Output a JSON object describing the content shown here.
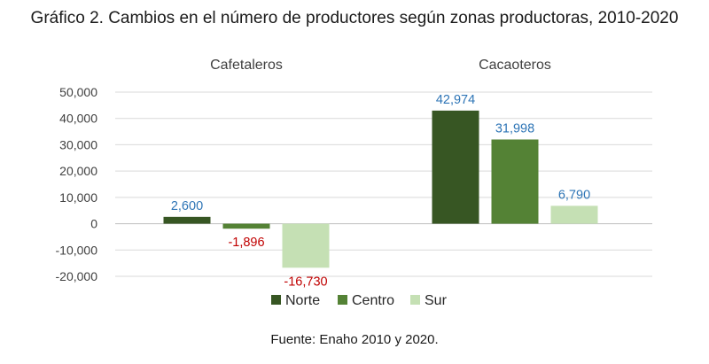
{
  "title": "Gráfico 2. Cambios en el número de productores según zonas productoras, 2010-2020",
  "source": "Fuente: Enaho 2010 y 2020.",
  "colors": {
    "Norte": "#375623",
    "Centro": "#548235",
    "Sur": "#c5e0b4",
    "positive_label": "#2e75b6",
    "negative_label": "#c00000"
  },
  "chart_data": {
    "type": "bar",
    "categories": [
      "Cafetaleros",
      "Cacaoteros"
    ],
    "series": [
      {
        "name": "Norte",
        "values": [
          2600,
          42974
        ],
        "labels": [
          "2,600",
          "42,974"
        ]
      },
      {
        "name": "Centro",
        "values": [
          -1896,
          31998
        ],
        "labels": [
          "-1,896",
          "31,998"
        ]
      },
      {
        "name": "Sur",
        "values": [
          -16730,
          6790
        ],
        "labels": [
          "-16,730",
          "6,790"
        ]
      }
    ],
    "ylim": [
      -20000,
      50000
    ],
    "yticks": [
      50000,
      40000,
      30000,
      20000,
      10000,
      0,
      -10000,
      -20000
    ],
    "ytick_labels": [
      "50,000",
      "40,000",
      "30,000",
      "20,000",
      "10,000",
      "0",
      "-10,000",
      "-20,000"
    ],
    "grid": true,
    "legend_position": "bottom"
  }
}
